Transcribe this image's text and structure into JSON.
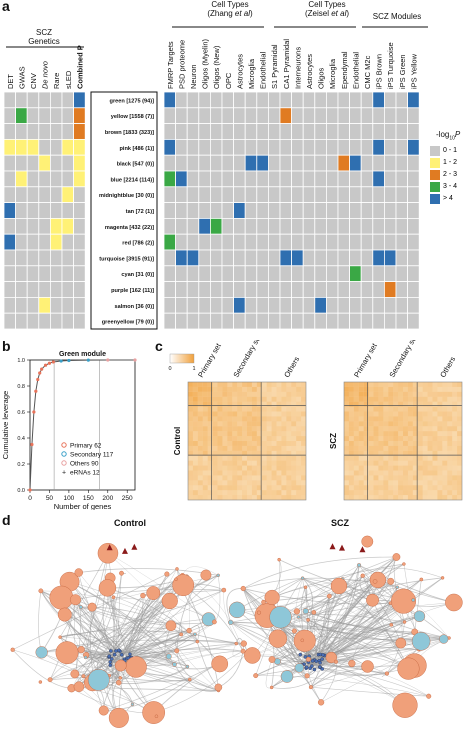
{
  "panel_a": {
    "letter": "a",
    "group_left": {
      "title": "SCZ",
      "subtitle": "Genetics"
    },
    "group_zhang": {
      "title": "Cell Types",
      "subtitle": "(Zhang ",
      "italic": "et al",
      "close": ")"
    },
    "group_zeisel": {
      "title": "Cell Types",
      "subtitle": "(Zeisel ",
      "italic": "et al",
      "close": ")"
    },
    "group_modules": {
      "title": "SCZ Modules"
    },
    "left_columns": [
      "DET",
      "GWAS",
      "CNV",
      "De novo",
      "Rare",
      "sLED",
      "Combined P"
    ],
    "right_columns": [
      "FMRP Targets",
      "PSD proteome",
      "Neuron",
      "Oligos (Myelin)",
      "Oligos (New)",
      "OPC",
      "Astrocytes",
      "Microglia",
      "Endothelial",
      "S1 Pyramidal",
      "CA1 Pyramidal",
      "Interneurons",
      "Astrocytes",
      "Oligos",
      "Microglia",
      "Ependymal",
      "Endothelial",
      "CMC M2c",
      "iPS Brown",
      "iPS Turquoise",
      "iPS Green",
      "iPS Yellow"
    ],
    "modules": [
      "green [1275 (94)]",
      "yellow [1558 (7)]",
      "brown [1833 (323)]",
      "pink [486 (1)]",
      "black [547 (0)]",
      "blue [2214 (114)]",
      "midnightblue [30 (0)]",
      "tan [72 (1)]",
      "magenta [432 (22)]",
      "red [786 (2)]",
      "turquoise [3915 (91)]",
      "cyan [31 (0)]",
      "purple [162 (11)]",
      "salmon [36 (0)]",
      "greenyellow [79 (0)]"
    ],
    "legend_title": "-log",
    "legend_sub": "10",
    "legend_p": "P",
    "legend": [
      {
        "label": "0 - 1",
        "color": "#c8c8c8"
      },
      {
        "label": "1 - 2",
        "color": "#fff176"
      },
      {
        "label": "2 - 3",
        "color": "#e07b22"
      },
      {
        "label": "3 - 4",
        "color": "#3aa845"
      },
      {
        "label": "> 4",
        "color": "#2f6fb0"
      }
    ],
    "left_grid": [
      [
        0,
        0,
        0,
        0,
        0,
        0,
        4
      ],
      [
        0,
        3,
        0,
        0,
        0,
        0,
        2
      ],
      [
        0,
        0,
        0,
        0,
        0,
        0,
        2
      ],
      [
        1,
        1,
        1,
        0,
        0,
        1,
        1
      ],
      [
        0,
        0,
        0,
        1,
        0,
        0,
        1
      ],
      [
        0,
        1,
        0,
        0,
        0,
        0,
        1
      ],
      [
        0,
        0,
        0,
        0,
        0,
        1,
        0
      ],
      [
        4,
        0,
        0,
        0,
        0,
        0,
        0
      ],
      [
        0,
        0,
        0,
        0,
        1,
        1,
        0
      ],
      [
        4,
        0,
        0,
        0,
        1,
        0,
        0
      ],
      [
        0,
        0,
        0,
        0,
        0,
        0,
        0
      ],
      [
        0,
        0,
        0,
        0,
        0,
        0,
        0
      ],
      [
        0,
        0,
        0,
        0,
        0,
        0,
        0
      ],
      [
        0,
        0,
        0,
        1,
        0,
        0,
        0
      ],
      [
        0,
        0,
        0,
        0,
        0,
        0,
        0
      ]
    ],
    "right_grid": [
      [
        4,
        0,
        0,
        0,
        0,
        0,
        0,
        0,
        0,
        0,
        0,
        0,
        0,
        0,
        0,
        0,
        0,
        0,
        4,
        0,
        0,
        4
      ],
      [
        0,
        0,
        0,
        0,
        0,
        0,
        0,
        0,
        0,
        0,
        2,
        0,
        0,
        0,
        0,
        0,
        0,
        0,
        0,
        0,
        0,
        0
      ],
      [
        0,
        0,
        0,
        0,
        0,
        0,
        0,
        0,
        0,
        0,
        0,
        0,
        0,
        0,
        0,
        0,
        0,
        0,
        0,
        0,
        0,
        0
      ],
      [
        4,
        0,
        0,
        0,
        0,
        0,
        0,
        0,
        0,
        0,
        0,
        0,
        0,
        0,
        0,
        0,
        0,
        0,
        4,
        0,
        0,
        4
      ],
      [
        0,
        0,
        0,
        0,
        0,
        0,
        0,
        4,
        4,
        0,
        0,
        0,
        0,
        0,
        0,
        2,
        4,
        0,
        0,
        0,
        0,
        0
      ],
      [
        3,
        4,
        0,
        0,
        0,
        0,
        0,
        0,
        0,
        0,
        0,
        0,
        0,
        0,
        0,
        0,
        0,
        0,
        4,
        0,
        0,
        0
      ],
      [
        0,
        0,
        0,
        0,
        0,
        0,
        0,
        0,
        0,
        0,
        0,
        0,
        0,
        0,
        0,
        0,
        0,
        0,
        0,
        0,
        0,
        0
      ],
      [
        0,
        0,
        0,
        0,
        0,
        0,
        4,
        0,
        0,
        0,
        0,
        0,
        0,
        0,
        0,
        0,
        0,
        0,
        0,
        0,
        0,
        0
      ],
      [
        0,
        0,
        0,
        4,
        3,
        0,
        0,
        0,
        0,
        0,
        0,
        0,
        0,
        0,
        0,
        0,
        0,
        0,
        0,
        0,
        0,
        0
      ],
      [
        3,
        0,
        0,
        0,
        0,
        0,
        0,
        0,
        0,
        0,
        0,
        0,
        0,
        0,
        0,
        0,
        0,
        0,
        0,
        0,
        0,
        0
      ],
      [
        0,
        4,
        4,
        0,
        0,
        0,
        0,
        0,
        0,
        0,
        4,
        4,
        0,
        0,
        0,
        0,
        0,
        0,
        4,
        4,
        0,
        0
      ],
      [
        0,
        0,
        0,
        0,
        0,
        0,
        0,
        0,
        0,
        0,
        0,
        0,
        0,
        0,
        0,
        0,
        3,
        0,
        0,
        0,
        0,
        0
      ],
      [
        0,
        0,
        0,
        0,
        0,
        0,
        0,
        0,
        0,
        0,
        0,
        0,
        0,
        0,
        0,
        0,
        0,
        0,
        0,
        2,
        0,
        0
      ],
      [
        0,
        0,
        0,
        0,
        0,
        0,
        4,
        0,
        0,
        0,
        0,
        0,
        0,
        4,
        0,
        0,
        0,
        0,
        0,
        0,
        0,
        0
      ],
      [
        0,
        0,
        0,
        0,
        0,
        0,
        0,
        0,
        0,
        0,
        0,
        0,
        0,
        0,
        0,
        0,
        0,
        0,
        0,
        0,
        0,
        0
      ]
    ]
  },
  "panel_b": {
    "letter": "b",
    "title": "Green module",
    "ylabel": "Cumulative leverage",
    "xlabel": "Number of genes",
    "x_ticks": [
      "0",
      "50",
      "100",
      "150",
      "200",
      "250"
    ],
    "y_ticks": [
      "0.0",
      "0.2",
      "0.4",
      "0.6",
      "0.8",
      "1.0"
    ],
    "legend": [
      {
        "label": "Primary 62",
        "color": "#e8735a"
      },
      {
        "label": "Secondary 117",
        "color": "#3aa0c8"
      },
      {
        "label": "Others 90",
        "color": "#e8a0a0"
      },
      {
        "label": "eRNAs 12",
        "color": "#222222"
      }
    ]
  },
  "panel_c": {
    "letter": "c",
    "scale_min": "0",
    "scale_max": "1",
    "col_labels": [
      "Primary set",
      "Secondary set",
      "Others"
    ],
    "row_label_control": "Control",
    "row_label_scz": "SCZ"
  },
  "panel_d": {
    "letter": "d",
    "title_control": "Control",
    "title_scz": "SCZ"
  },
  "chart_data": [
    {
      "type": "line",
      "title": "Green module",
      "xlabel": "Number of genes",
      "ylabel": "Cumulative leverage",
      "xlim": [
        0,
        270
      ],
      "ylim": [
        0,
        1.0
      ],
      "x": [
        0,
        5,
        10,
        15,
        20,
        25,
        30,
        40,
        50,
        60,
        80,
        100,
        150,
        200,
        270
      ],
      "series": [
        {
          "values": [
            0.0,
            0.35,
            0.6,
            0.76,
            0.85,
            0.9,
            0.93,
            0.96,
            0.975,
            0.985,
            0.992,
            0.996,
            0.999,
            1.0,
            1.0
          ]
        }
      ]
    }
  ]
}
